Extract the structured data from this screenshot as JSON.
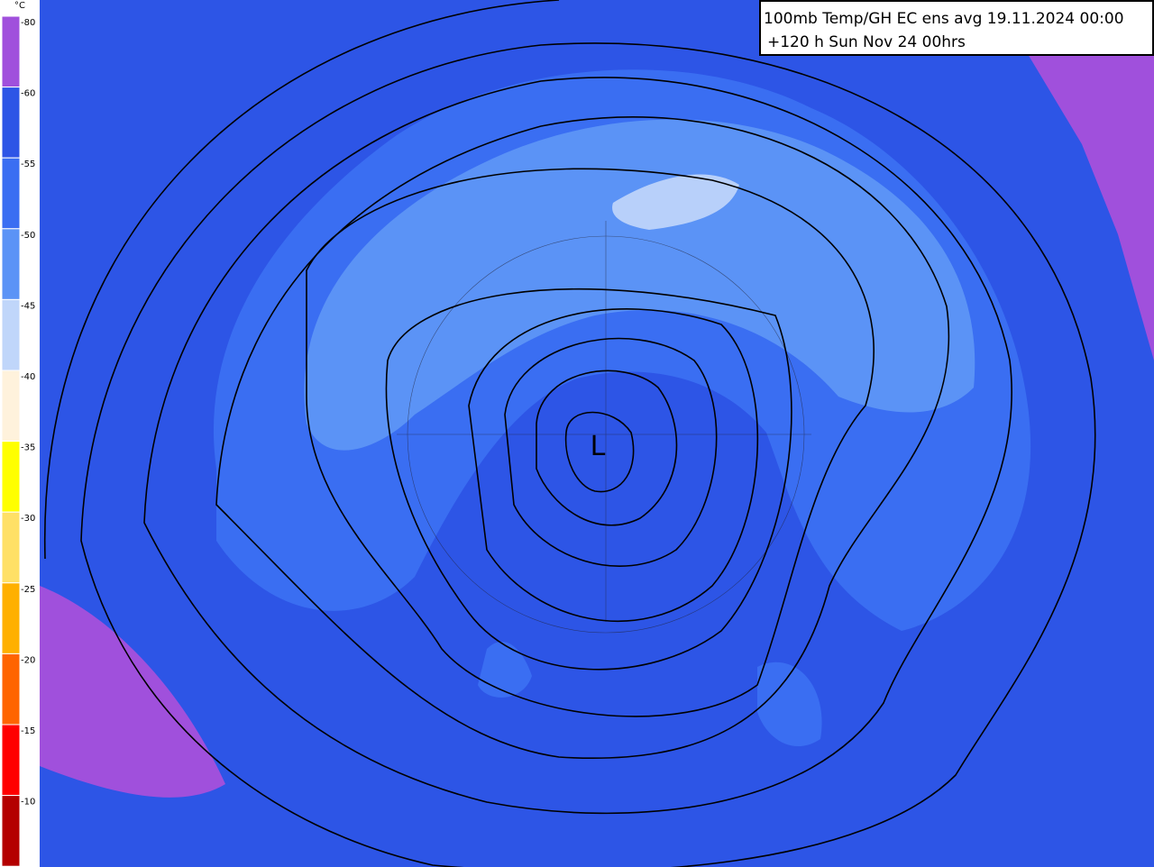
{
  "header": {
    "line1": "100mb Temp/GH  EC ens avg 19.11.2024 00:00",
    "line2": "+120 h Sun Nov 24 00hrs"
  },
  "legend": {
    "unit": "°C",
    "labels": [
      "-80",
      "-60",
      "-55",
      "-50",
      "-45",
      "-40",
      "-35",
      "-30",
      "-25",
      "-20",
      "-15",
      "-10"
    ]
  },
  "map": {
    "low_label": "L"
  }
}
